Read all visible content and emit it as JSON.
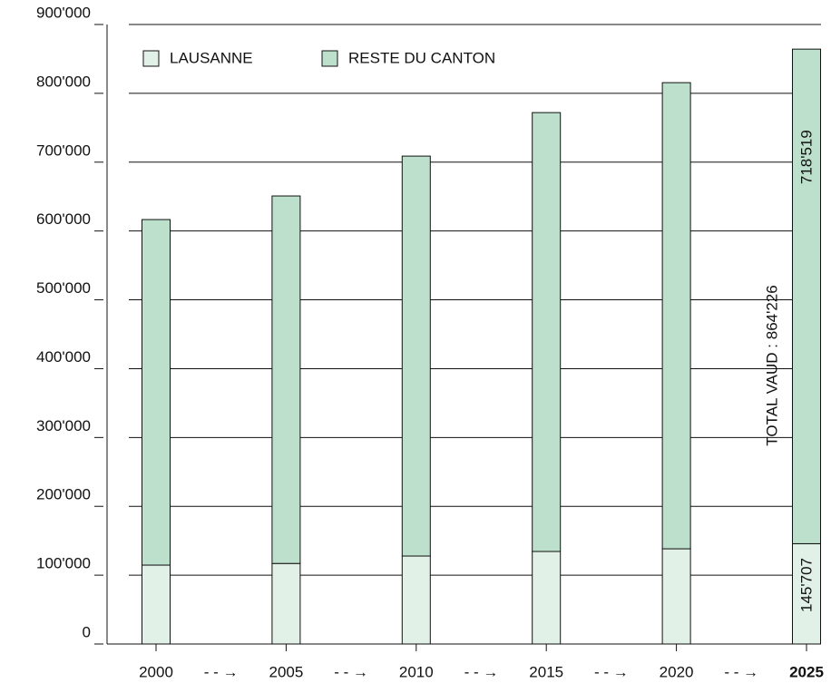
{
  "chart_data": {
    "type": "stacked_bar",
    "categories": [
      "2000",
      "2005",
      "2010",
      "2015",
      "2020",
      "2025"
    ],
    "series": [
      {
        "name": "LAUSANNE",
        "color": "#e2f1e8",
        "values": [
          114600,
          117000,
          127800,
          134400,
          138300,
          145707
        ],
        "value_labels": [
          null,
          null,
          null,
          null,
          null,
          "145'707"
        ]
      },
      {
        "name": "RESTE DU CANTON",
        "color": "#bde0cc",
        "values": [
          502000,
          533900,
          581000,
          637600,
          677200,
          718519
        ],
        "value_labels": [
          null,
          null,
          null,
          null,
          null,
          "718'519"
        ]
      }
    ],
    "annotation": "TOTAL VAUD : 864'226",
    "ylim": [
      0,
      900000
    ],
    "yticks": [
      0,
      {
        "value": 100000,
        "label": "100'000"
      },
      {
        "value": 200000,
        "label": "200'000"
      },
      {
        "value": 300000,
        "label": "300'000"
      },
      {
        "value": 400000,
        "label": "400'000"
      },
      {
        "value": 500000,
        "label": "500'000"
      },
      {
        "value": 600000,
        "label": "600'000"
      },
      {
        "value": 700000,
        "label": "700'000"
      },
      {
        "value": 800000,
        "label": "800'000"
      },
      {
        "value": 900000,
        "label": "900'000"
      }
    ],
    "grid": true,
    "legend": "top-left"
  }
}
